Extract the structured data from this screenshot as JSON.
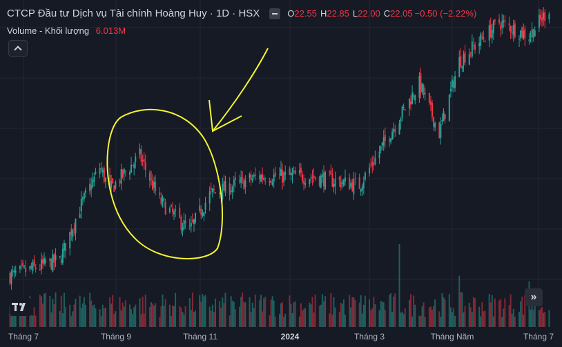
{
  "legend": {
    "title": "CTCP Đầu tư Dịch vụ Tài chính Hoàng Huy · 1D · HSX",
    "open_label": "O",
    "open_value": "22.55",
    "high_label": "H",
    "high_value": "22.85",
    "low_label": "L",
    "low_value": "22.00",
    "close_label": "C",
    "close_value": "22.05",
    "change": "−0.50 (−2.22%)",
    "volume_label": "Volume - Khối lượng",
    "volume_value": "6.013M"
  },
  "colors": {
    "background": "#161a25",
    "grid": "#232733",
    "up": "#26a69a",
    "down": "#f23645",
    "annotation": "#f5f530"
  },
  "icons": {
    "collapse": "chevron-up-icon",
    "logo": "tradingview-logo-icon",
    "scroll": "chevrons-right-icon"
  },
  "chart_data": {
    "type": "candlestick",
    "symbol": "Hoàng Huy",
    "interval": "1D",
    "exchange": "HSX",
    "x_tick_labels": [
      "Tháng 7",
      "Tháng 9",
      "Tháng 11",
      "2024",
      "Tháng 3",
      "Tháng Năm",
      "Tháng 7"
    ],
    "y_axis": {
      "visible_range": [
        12,
        24
      ],
      "scale": "linear",
      "tick_labels_visible": false
    },
    "grid": true,
    "price_anchors": [
      {
        "date": "2023-06-26",
        "close": 12.0
      },
      {
        "date": "2023-07-31",
        "close": 12.7
      },
      {
        "date": "2023-08-14",
        "close": 15.0
      },
      {
        "date": "2023-08-28",
        "close": 16.8
      },
      {
        "date": "2023-09-04",
        "close": 15.8
      },
      {
        "date": "2023-09-25",
        "close": 17.3
      },
      {
        "date": "2023-10-09",
        "close": 15.3
      },
      {
        "date": "2023-10-30",
        "close": 14.0
      },
      {
        "date": "2023-11-13",
        "close": 15.6
      },
      {
        "date": "2023-12-18",
        "close": 16.4
      },
      {
        "date": "2024-01-22",
        "close": 16.4
      },
      {
        "date": "2024-02-26",
        "close": 16.0
      },
      {
        "date": "2024-03-25",
        "close": 19.0
      },
      {
        "date": "2024-04-08",
        "close": 20.5
      },
      {
        "date": "2024-04-22",
        "close": 18.3
      },
      {
        "date": "2024-05-06",
        "close": 21.5
      },
      {
        "date": "2024-06-03",
        "close": 23.2
      },
      {
        "date": "2024-06-24",
        "close": 22.6
      },
      {
        "date": "2024-07-08",
        "close": 23.8
      }
    ],
    "volume": {
      "label": "Volume - Khối lượng",
      "last": "6.013M",
      "spikes": [
        {
          "date": "2024-03-25",
          "relative": 1.0
        },
        {
          "date": "2024-05-06",
          "relative": 0.62
        },
        {
          "date": "2024-06-24",
          "relative": 0.55
        }
      ]
    },
    "annotations": [
      {
        "type": "freehand-circle",
        "color": "#f5f530",
        "around": "2023-09 to 2023-11 decline"
      },
      {
        "type": "freehand-arrow",
        "color": "#f5f530",
        "points_to": "2023-11 low"
      }
    ]
  },
  "time_axis": {
    "labels": [
      "Tháng 7",
      "Tháng 9",
      "Tháng 11",
      "2024",
      "Tháng 3",
      "Tháng Năm",
      "Tháng 7"
    ]
  }
}
